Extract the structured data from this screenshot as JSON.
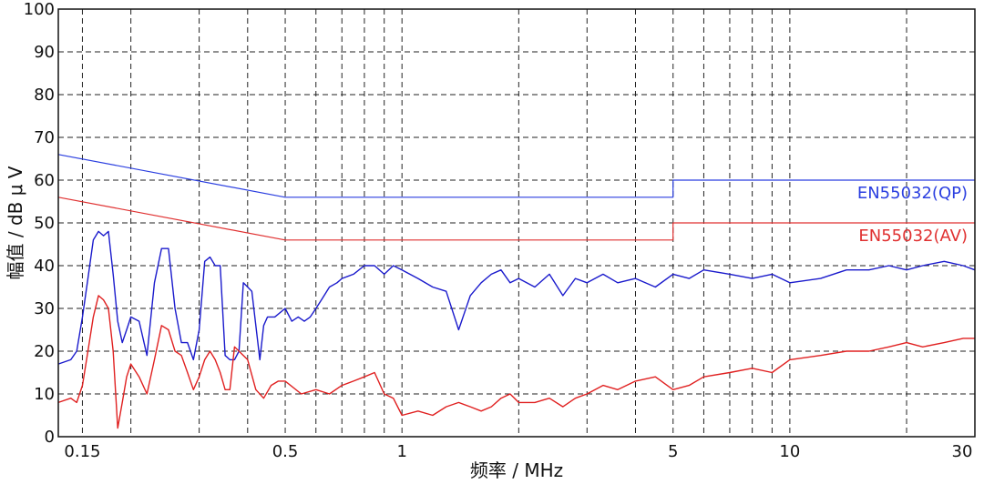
{
  "chart_data": {
    "type": "line",
    "xlabel": "频率 / MHz",
    "ylabel": "幅值 / dB μ V",
    "x_scale": "log",
    "xlim": [
      0.13,
      30
    ],
    "ylim": [
      0,
      100
    ],
    "grid": true,
    "y_ticks": [
      0,
      10,
      20,
      30,
      40,
      50,
      60,
      70,
      80,
      90,
      100
    ],
    "x_tick_labels": [
      {
        "value": 0.15,
        "label": "0.15"
      },
      {
        "value": 0.5,
        "label": "0.5"
      },
      {
        "value": 1,
        "label": "1"
      },
      {
        "value": 5,
        "label": "5"
      },
      {
        "value": 10,
        "label": "10"
      },
      {
        "value": 30,
        "label": "30"
      }
    ],
    "x_grid": [
      0.15,
      0.2,
      0.3,
      0.4,
      0.5,
      0.6,
      0.7,
      0.8,
      0.9,
      1,
      2,
      3,
      4,
      5,
      6,
      7,
      8,
      9,
      10,
      20,
      30
    ],
    "series": [
      {
        "name": "EN55032(QP)",
        "role": "limit",
        "color": "#2b3fe0",
        "x": [
          0.13,
          0.5,
          0.5,
          5,
          5,
          30
        ],
        "y": [
          66,
          56,
          56,
          56,
          60,
          60
        ]
      },
      {
        "name": "EN55032(AV)",
        "role": "limit",
        "color": "#e03030",
        "x": [
          0.13,
          0.5,
          0.5,
          5,
          5,
          30
        ],
        "y": [
          56,
          46,
          46,
          46,
          50,
          50
        ]
      },
      {
        "role": "measurement",
        "color": "#1a1acc",
        "x": [
          0.13,
          0.14,
          0.145,
          0.15,
          0.155,
          0.16,
          0.165,
          0.17,
          0.175,
          0.18,
          0.185,
          0.19,
          0.195,
          0.2,
          0.21,
          0.22,
          0.23,
          0.24,
          0.25,
          0.26,
          0.27,
          0.28,
          0.29,
          0.3,
          0.31,
          0.32,
          0.33,
          0.34,
          0.35,
          0.36,
          0.37,
          0.38,
          0.39,
          0.4,
          0.41,
          0.42,
          0.43,
          0.44,
          0.45,
          0.47,
          0.5,
          0.52,
          0.54,
          0.56,
          0.58,
          0.6,
          0.62,
          0.65,
          0.68,
          0.7,
          0.75,
          0.8,
          0.85,
          0.9,
          0.95,
          1.0,
          1.1,
          1.2,
          1.3,
          1.4,
          1.5,
          1.6,
          1.7,
          1.8,
          1.9,
          2.0,
          2.2,
          2.4,
          2.6,
          2.8,
          3.0,
          3.3,
          3.6,
          4.0,
          4.5,
          5.0,
          5.5,
          6.0,
          7.0,
          8.0,
          9.0,
          10,
          12,
          14,
          16,
          18,
          20,
          22,
          25,
          28,
          30
        ],
        "y": [
          17,
          18,
          20,
          28,
          37,
          46,
          48,
          47,
          48,
          38,
          27,
          22,
          25,
          28,
          27,
          19,
          36,
          44,
          44,
          30,
          22,
          22,
          18,
          25,
          41,
          42,
          40,
          40,
          19,
          18,
          18,
          20,
          36,
          35,
          34,
          26,
          18,
          26,
          28,
          28,
          30,
          27,
          28,
          27,
          28,
          30,
          32,
          35,
          36,
          37,
          38,
          40,
          40,
          38,
          40,
          39,
          37,
          35,
          34,
          25,
          33,
          36,
          38,
          39,
          36,
          37,
          35,
          38,
          33,
          37,
          36,
          38,
          36,
          37,
          35,
          38,
          37,
          39,
          38,
          37,
          38,
          36,
          37,
          39,
          39,
          40,
          39,
          40,
          41,
          40,
          39
        ]
      },
      {
        "role": "measurement",
        "color": "#e02020",
        "x": [
          0.13,
          0.14,
          0.145,
          0.15,
          0.155,
          0.16,
          0.165,
          0.17,
          0.175,
          0.18,
          0.185,
          0.19,
          0.195,
          0.2,
          0.21,
          0.22,
          0.23,
          0.24,
          0.25,
          0.26,
          0.27,
          0.28,
          0.29,
          0.3,
          0.31,
          0.32,
          0.33,
          0.34,
          0.35,
          0.36,
          0.37,
          0.38,
          0.39,
          0.4,
          0.42,
          0.44,
          0.46,
          0.48,
          0.5,
          0.55,
          0.6,
          0.65,
          0.7,
          0.75,
          0.8,
          0.85,
          0.9,
          0.95,
          1.0,
          1.1,
          1.2,
          1.3,
          1.4,
          1.5,
          1.6,
          1.7,
          1.8,
          1.9,
          2.0,
          2.2,
          2.4,
          2.6,
          2.8,
          3.0,
          3.3,
          3.6,
          4.0,
          4.5,
          5.0,
          5.5,
          6.0,
          7.0,
          8.0,
          9.0,
          10,
          12,
          14,
          16,
          18,
          20,
          22,
          25,
          28,
          30
        ],
        "y": [
          8,
          9,
          8,
          12,
          20,
          28,
          33,
          32,
          30,
          20,
          2,
          8,
          14,
          17,
          14,
          10,
          18,
          26,
          25,
          20,
          19,
          15,
          11,
          14,
          18,
          20,
          18,
          15,
          11,
          11,
          21,
          20,
          19,
          18,
          11,
          9,
          12,
          13,
          13,
          10,
          11,
          10,
          12,
          13,
          14,
          15,
          10,
          9,
          5,
          6,
          5,
          7,
          8,
          7,
          6,
          7,
          9,
          10,
          8,
          8,
          9,
          7,
          9,
          10,
          12,
          11,
          13,
          14,
          11,
          12,
          14,
          15,
          16,
          15,
          18,
          19,
          20,
          20,
          21,
          22,
          21,
          22,
          23,
          23
        ]
      }
    ],
    "annotations": [
      {
        "text": "EN55032(QP)",
        "color": "#2b3fe0",
        "x": 30,
        "y": 60
      },
      {
        "text": "EN55032(AV)",
        "color": "#e03030",
        "x": 30,
        "y": 50
      }
    ]
  }
}
